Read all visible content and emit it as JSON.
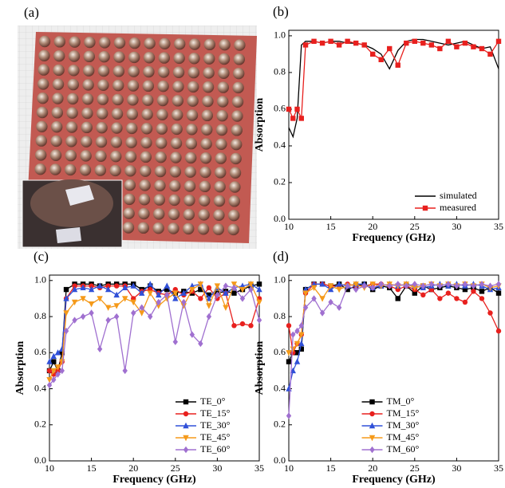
{
  "photo_panel": {
    "label": "(a)"
  },
  "chart_data": [
    {
      "type": "line",
      "panel_label": "(b)",
      "x_label": "Frequency (GHz)",
      "y_label": "Absorption",
      "x": [
        10,
        10.5,
        11,
        11.5,
        12,
        13,
        14,
        15,
        16,
        17,
        18,
        19,
        20,
        21,
        22,
        23,
        24,
        25,
        26,
        27,
        28,
        29,
        30,
        31,
        32,
        33,
        34,
        35
      ],
      "xlim": [
        10,
        35
      ],
      "xticks": [
        10,
        15,
        20,
        25,
        30,
        35
      ],
      "ylim": [
        0,
        1.03
      ],
      "yticks": [
        {
          "value": 0,
          "label": "0.0"
        },
        {
          "value": 0.2,
          "label": "0.2"
        },
        {
          "value": 0.4,
          "label": "0.4"
        },
        {
          "value": 0.6,
          "label": "0.6"
        },
        {
          "value": 0.8,
          "label": "0.8"
        },
        {
          "value": 1.0,
          "label": "1.0"
        }
      ],
      "legend": "lower right",
      "series": [
        {
          "name": "simulated",
          "color": "#000000",
          "marker": "none",
          "values": [
            0.5,
            0.45,
            0.55,
            0.95,
            0.97,
            0.97,
            0.96,
            0.97,
            0.97,
            0.96,
            0.96,
            0.95,
            0.93,
            0.9,
            0.82,
            0.92,
            0.97,
            0.98,
            0.98,
            0.97,
            0.96,
            0.95,
            0.96,
            0.97,
            0.95,
            0.93,
            0.94,
            0.82
          ]
        },
        {
          "name": "measured",
          "color": "#e8201e",
          "marker": "square",
          "values": [
            0.6,
            0.55,
            0.6,
            0.55,
            0.95,
            0.97,
            0.96,
            0.97,
            0.95,
            0.97,
            0.96,
            0.95,
            0.9,
            0.87,
            0.93,
            0.84,
            0.96,
            0.97,
            0.96,
            0.95,
            0.93,
            0.97,
            0.94,
            0.96,
            0.94,
            0.93,
            0.9,
            0.97
          ]
        }
      ]
    },
    {
      "type": "line",
      "panel_label": "(c)",
      "x_label": "Frequency (GHz)",
      "y_label": "Absorption",
      "x": [
        10,
        10.5,
        11,
        11.5,
        12,
        13,
        14,
        15,
        16,
        17,
        18,
        19,
        20,
        21,
        22,
        23,
        24,
        25,
        26,
        27,
        28,
        29,
        30,
        31,
        32,
        33,
        34,
        35
      ],
      "xlim": [
        10,
        35
      ],
      "xticks": [
        10,
        15,
        20,
        25,
        30,
        35
      ],
      "ylim": [
        0,
        1.03
      ],
      "yticks": [
        {
          "value": 0,
          "label": "0.0"
        },
        {
          "value": 0.2,
          "label": "0.2"
        },
        {
          "value": 0.4,
          "label": "0.4"
        },
        {
          "value": 0.6,
          "label": "0.6"
        },
        {
          "value": 0.8,
          "label": "0.8"
        },
        {
          "value": 1.0,
          "label": "1.0"
        }
      ],
      "legend": "lower right",
      "series": [
        {
          "name": "TE_0°",
          "color": "#000000",
          "marker": "square",
          "values": [
            0.5,
            0.55,
            0.5,
            0.6,
            0.95,
            0.98,
            0.98,
            0.98,
            0.97,
            0.98,
            0.98,
            0.98,
            0.98,
            0.95,
            0.97,
            0.94,
            0.95,
            0.93,
            0.94,
            0.93,
            0.95,
            0.92,
            0.93,
            0.94,
            0.93,
            0.95,
            0.97,
            0.98
          ]
        },
        {
          "name": "TE_15°",
          "color": "#e8201e",
          "marker": "circle",
          "values": [
            0.5,
            0.48,
            0.5,
            0.55,
            0.9,
            0.97,
            0.97,
            0.97,
            0.96,
            0.97,
            0.97,
            0.97,
            0.9,
            0.94,
            0.95,
            0.93,
            0.92,
            0.95,
            0.92,
            0.94,
            0.9,
            0.96,
            0.9,
            0.93,
            0.75,
            0.76,
            0.75,
            0.9
          ]
        },
        {
          "name": "TE_30°",
          "color": "#3050d8",
          "marker": "triangle",
          "values": [
            0.55,
            0.58,
            0.6,
            0.62,
            0.9,
            0.95,
            0.96,
            0.95,
            0.97,
            0.95,
            0.92,
            0.96,
            0.97,
            0.93,
            0.98,
            0.92,
            0.97,
            0.9,
            0.93,
            0.97,
            0.98,
            0.9,
            0.96,
            0.93,
            0.96,
            0.97,
            0.98,
            0.95
          ]
        },
        {
          "name": "TE_45°",
          "color": "#f59a1a",
          "marker": "triangle-down",
          "values": [
            0.45,
            0.5,
            0.52,
            0.55,
            0.82,
            0.88,
            0.9,
            0.87,
            0.9,
            0.85,
            0.86,
            0.9,
            0.88,
            0.82,
            0.93,
            0.86,
            0.9,
            0.93,
            0.86,
            0.95,
            0.98,
            0.86,
            0.97,
            0.85,
            0.98,
            0.95,
            0.98,
            0.88
          ]
        },
        {
          "name": "TE_60°",
          "color": "#a070d0",
          "marker": "diamond",
          "values": [
            0.42,
            0.45,
            0.48,
            0.5,
            0.72,
            0.78,
            0.8,
            0.82,
            0.62,
            0.78,
            0.8,
            0.5,
            0.82,
            0.85,
            0.8,
            0.88,
            0.92,
            0.66,
            0.88,
            0.7,
            0.65,
            0.8,
            0.92,
            0.97,
            0.96,
            0.9,
            0.95,
            0.78
          ]
        }
      ]
    },
    {
      "type": "line",
      "panel_label": "(d)",
      "x_label": "Frequency (GHz)",
      "y_label": "Absorption",
      "x": [
        10,
        10.5,
        11,
        11.5,
        12,
        13,
        14,
        15,
        16,
        17,
        18,
        19,
        20,
        21,
        22,
        23,
        24,
        25,
        26,
        27,
        28,
        29,
        30,
        31,
        32,
        33,
        34,
        35
      ],
      "xlim": [
        10,
        35
      ],
      "xticks": [
        10,
        15,
        20,
        25,
        30,
        35
      ],
      "ylim": [
        0,
        1.03
      ],
      "yticks": [
        {
          "value": 0,
          "label": "0.0"
        },
        {
          "value": 0.2,
          "label": "0.2"
        },
        {
          "value": 0.4,
          "label": "0.4"
        },
        {
          "value": 0.6,
          "label": "0.6"
        },
        {
          "value": 0.8,
          "label": "0.8"
        },
        {
          "value": 1.0,
          "label": "1.0"
        }
      ],
      "legend": "lower center",
      "series": [
        {
          "name": "TM_0°",
          "color": "#000000",
          "marker": "square",
          "values": [
            0.55,
            0.6,
            0.6,
            0.62,
            0.95,
            0.98,
            0.98,
            0.97,
            0.98,
            0.95,
            0.97,
            0.98,
            0.95,
            0.97,
            0.96,
            0.9,
            0.97,
            0.93,
            0.97,
            0.95,
            0.96,
            0.97,
            0.96,
            0.95,
            0.96,
            0.94,
            0.96,
            0.93
          ]
        },
        {
          "name": "TM_15°",
          "color": "#e8201e",
          "marker": "circle",
          "values": [
            0.75,
            0.6,
            0.65,
            0.7,
            0.93,
            0.98,
            0.98,
            0.97,
            0.97,
            0.98,
            0.97,
            0.97,
            0.98,
            0.98,
            0.97,
            0.95,
            0.97,
            0.95,
            0.92,
            0.95,
            0.9,
            0.93,
            0.9,
            0.88,
            0.94,
            0.9,
            0.82,
            0.72
          ]
        },
        {
          "name": "TM_30°",
          "color": "#3050d8",
          "marker": "triangle",
          "values": [
            0.4,
            0.5,
            0.55,
            0.65,
            0.95,
            0.98,
            0.98,
            0.95,
            0.98,
            0.97,
            0.98,
            0.98,
            0.96,
            0.97,
            0.98,
            0.97,
            0.98,
            0.97,
            0.96,
            0.97,
            0.98,
            0.97,
            0.98,
            0.97,
            0.98,
            0.97,
            0.95,
            0.96
          ]
        },
        {
          "name": "TM_45°",
          "color": "#f59a1a",
          "marker": "triangle-down",
          "values": [
            0.6,
            0.62,
            0.65,
            0.7,
            0.93,
            0.96,
            0.9,
            0.97,
            0.95,
            0.97,
            0.98,
            0.96,
            0.98,
            0.97,
            0.98,
            0.97,
            0.98,
            0.96,
            0.97,
            0.98,
            0.97,
            0.98,
            0.97,
            0.98,
            0.97,
            0.98,
            0.96,
            0.97
          ]
        },
        {
          "name": "TM_60°",
          "color": "#a070d0",
          "marker": "diamond",
          "values": [
            0.25,
            0.7,
            0.72,
            0.75,
            0.85,
            0.9,
            0.82,
            0.88,
            0.85,
            0.97,
            0.95,
            0.97,
            0.96,
            0.98,
            0.97,
            0.98,
            0.97,
            0.98,
            0.97,
            0.98,
            0.97,
            0.98,
            0.97,
            0.98,
            0.97,
            0.98,
            0.97,
            0.98
          ]
        }
      ]
    }
  ]
}
